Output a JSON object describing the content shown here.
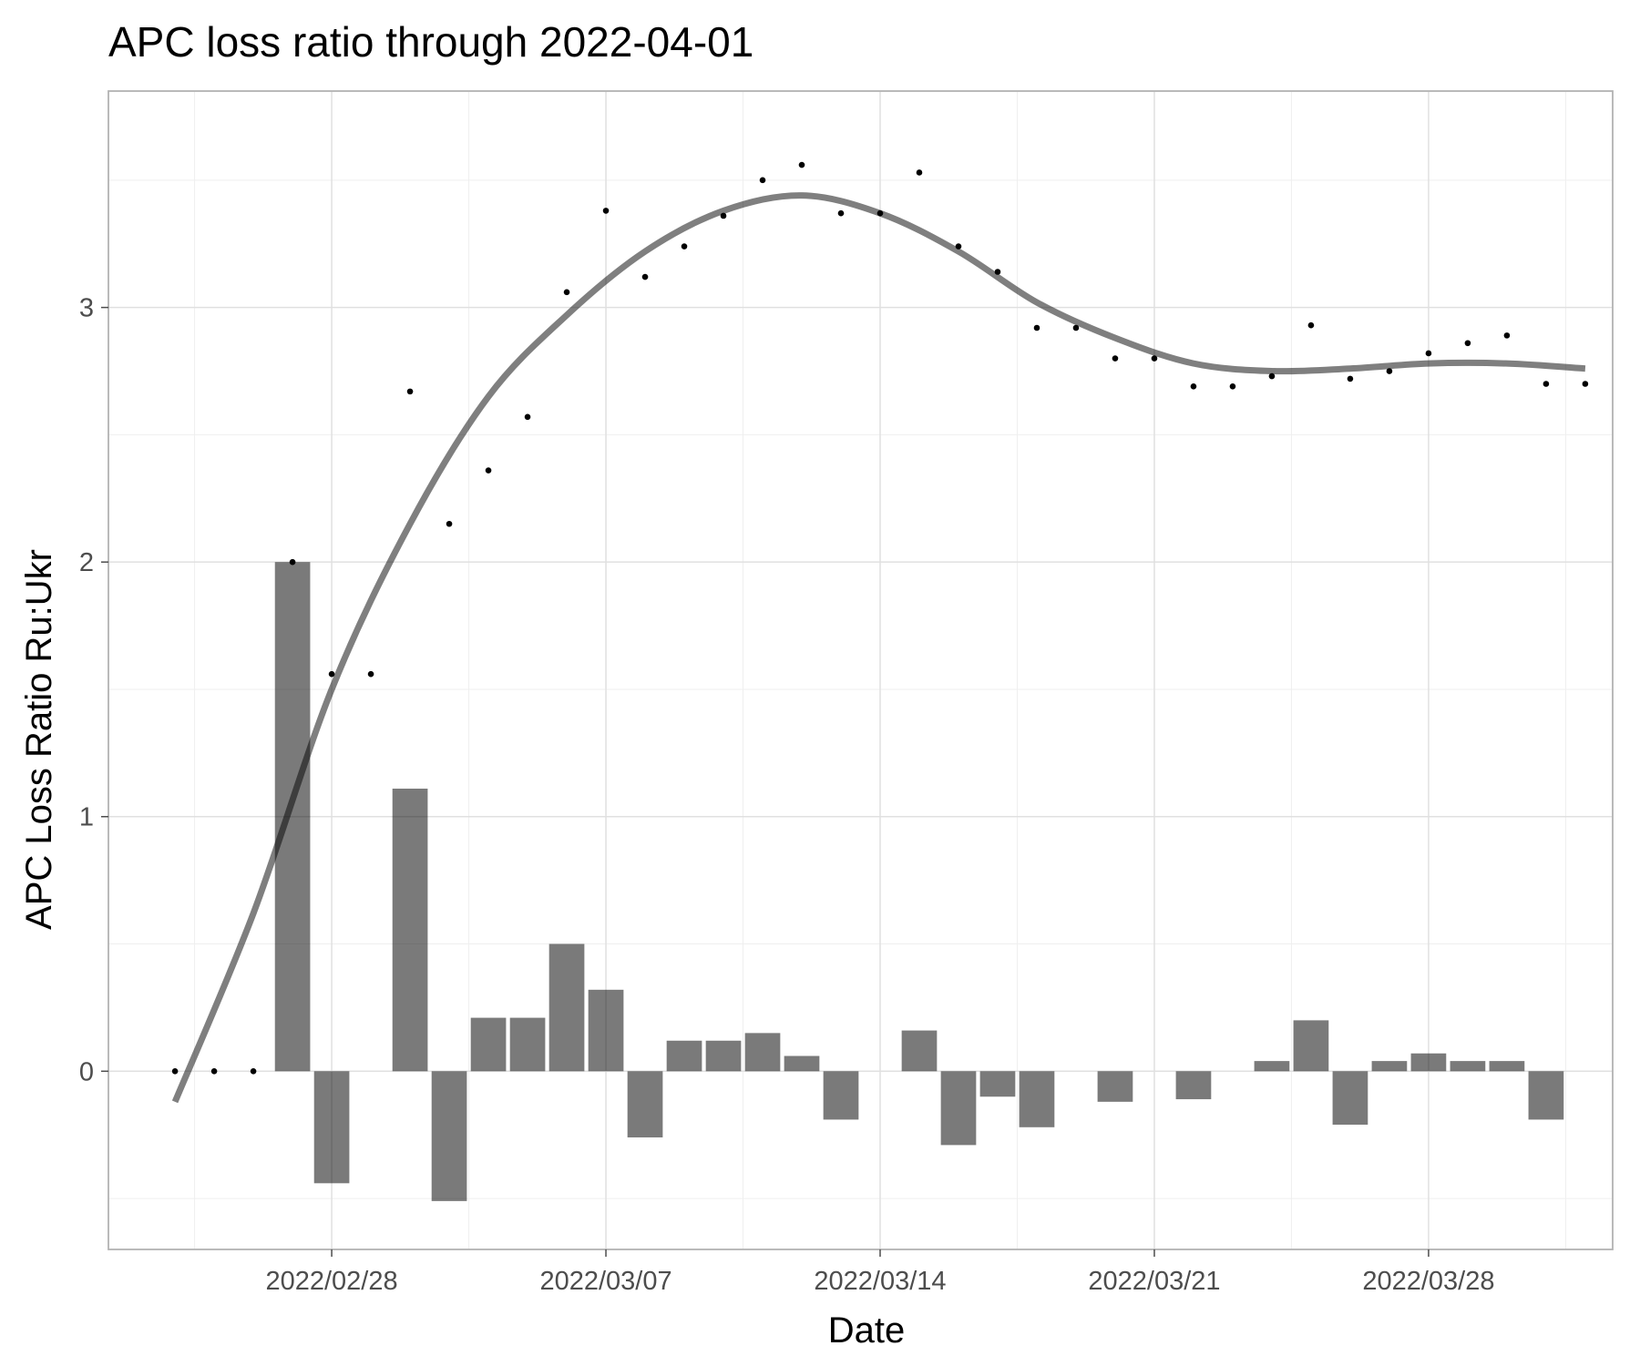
{
  "chart_data": {
    "type": "bar+scatter+line",
    "title": "APC loss ratio through 2022-04-01",
    "xlabel": "Date",
    "ylabel": "APC Loss Ratio Ru:Ukr",
    "x_ticks": [
      {
        "date": "2022-02-28",
        "label": "2022/02/28"
      },
      {
        "date": "2022-03-07",
        "label": "2022/03/07"
      },
      {
        "date": "2022-03-14",
        "label": "2022/03/14"
      },
      {
        "date": "2022-03-21",
        "label": "2022/03/21"
      },
      {
        "date": "2022-03-28",
        "label": "2022/03/28"
      }
    ],
    "y_ticks": [
      0,
      1,
      2,
      3
    ],
    "ylim": [
      -0.7,
      3.85
    ],
    "xlim": [
      "2022-02-23",
      "2022-04-02"
    ],
    "grid": true,
    "dates": [
      "2022-02-24",
      "2022-02-25",
      "2022-02-26",
      "2022-02-27",
      "2022-02-28",
      "2022-03-01",
      "2022-03-02",
      "2022-03-03",
      "2022-03-04",
      "2022-03-05",
      "2022-03-06",
      "2022-03-07",
      "2022-03-08",
      "2022-03-09",
      "2022-03-10",
      "2022-03-11",
      "2022-03-12",
      "2022-03-13",
      "2022-03-14",
      "2022-03-15",
      "2022-03-16",
      "2022-03-17",
      "2022-03-18",
      "2022-03-19",
      "2022-03-20",
      "2022-03-21",
      "2022-03-22",
      "2022-03-23",
      "2022-03-24",
      "2022-03-25",
      "2022-03-26",
      "2022-03-27",
      "2022-03-28",
      "2022-03-29",
      "2022-03-30",
      "2022-03-31",
      "2022-04-01"
    ],
    "ratio_points": [
      0,
      0,
      0,
      2.0,
      1.56,
      1.56,
      2.67,
      2.15,
      2.36,
      2.57,
      3.06,
      3.38,
      3.12,
      3.24,
      3.36,
      3.5,
      3.56,
      3.37,
      3.37,
      3.53,
      3.24,
      3.14,
      2.92,
      2.92,
      2.8,
      2.8,
      2.69,
      2.69,
      2.73,
      2.93,
      2.72,
      2.75,
      2.82,
      2.86,
      2.89,
      2.7,
      2.7
    ],
    "daily_change_bars": [
      null,
      null,
      null,
      2.0,
      -0.44,
      null,
      1.11,
      -0.51,
      0.21,
      0.21,
      0.5,
      0.32,
      -0.26,
      0.12,
      0.12,
      0.15,
      0.06,
      -0.19,
      null,
      0.16,
      -0.29,
      -0.1,
      -0.22,
      null,
      -0.12,
      null,
      -0.11,
      null,
      0.04,
      0.2,
      -0.21,
      0.04,
      0.07,
      0.04,
      0.04,
      -0.19,
      null
    ],
    "smooth_curve": [
      {
        "date": "2022-02-24",
        "value": -0.12
      },
      {
        "date": "2022-02-26",
        "value": 0.62
      },
      {
        "date": "2022-02-28",
        "value": 1.5
      },
      {
        "date": "2022-03-02",
        "value": 2.15
      },
      {
        "date": "2022-03-04",
        "value": 2.65
      },
      {
        "date": "2022-03-06",
        "value": 2.97
      },
      {
        "date": "2022-03-08",
        "value": 3.22
      },
      {
        "date": "2022-03-10",
        "value": 3.38
      },
      {
        "date": "2022-03-12",
        "value": 3.44
      },
      {
        "date": "2022-03-14",
        "value": 3.37
      },
      {
        "date": "2022-03-16",
        "value": 3.22
      },
      {
        "date": "2022-03-18",
        "value": 3.02
      },
      {
        "date": "2022-03-20",
        "value": 2.88
      },
      {
        "date": "2022-03-22",
        "value": 2.78
      },
      {
        "date": "2022-03-24",
        "value": 2.75
      },
      {
        "date": "2022-03-26",
        "value": 2.76
      },
      {
        "date": "2022-03-28",
        "value": 2.78
      },
      {
        "date": "2022-03-30",
        "value": 2.78
      },
      {
        "date": "2022-04-01",
        "value": 2.76
      }
    ]
  }
}
